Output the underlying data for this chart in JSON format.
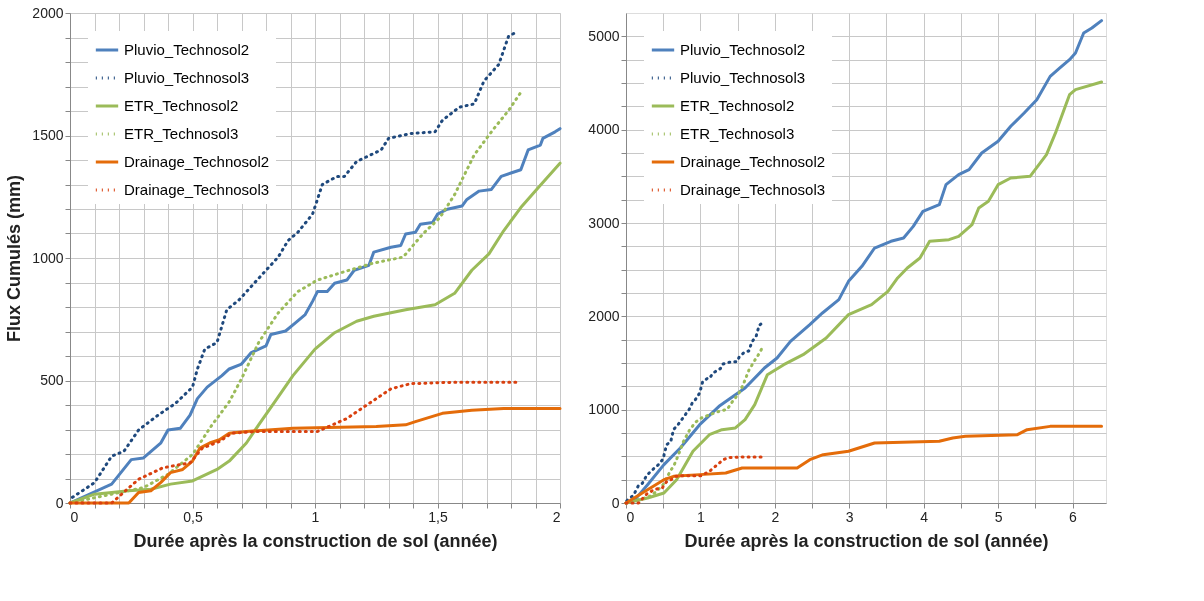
{
  "chart_data": [
    {
      "type": "line",
      "xlabel": "Durée après la construction de sol (année)",
      "ylabel": "Flux Cumulés (mm)",
      "xlim": [
        0,
        2
      ],
      "ylim": [
        0,
        2000
      ],
      "xticks": [
        0,
        {
          "value": 0.1,
          "label": null
        },
        {
          "value": 0.2,
          "label": null
        },
        {
          "value": 0.3,
          "label": null
        },
        {
          "value": 0.4,
          "label": null
        },
        {
          "value": 0.5,
          "label": "0,5"
        },
        {
          "value": 0.6,
          "label": null
        },
        {
          "value": 0.7,
          "label": null
        },
        {
          "value": 0.8,
          "label": null
        },
        {
          "value": 0.9,
          "label": null
        },
        1,
        {
          "value": 1.1,
          "label": null
        },
        {
          "value": 1.2,
          "label": null
        },
        {
          "value": 1.3,
          "label": null
        },
        {
          "value": 1.4,
          "label": null
        },
        {
          "value": 1.5,
          "label": "1,5"
        },
        {
          "value": 1.6,
          "label": null
        },
        {
          "value": 1.7,
          "label": null
        },
        {
          "value": 1.8,
          "label": null
        },
        {
          "value": 1.9,
          "label": null
        },
        2
      ],
      "yticks": [
        0,
        {
          "value": 100,
          "label": null
        },
        {
          "value": 200,
          "label": null
        },
        {
          "value": 300,
          "label": null
        },
        {
          "value": 400,
          "label": null
        },
        500,
        {
          "value": 600,
          "label": null
        },
        {
          "value": 700,
          "label": null
        },
        {
          "value": 800,
          "label": null
        },
        {
          "value": 900,
          "label": null
        },
        1000,
        {
          "value": 1100,
          "label": null
        },
        {
          "value": 1200,
          "label": null
        },
        {
          "value": 1300,
          "label": null
        },
        {
          "value": 1400,
          "label": null
        },
        1500,
        {
          "value": 1600,
          "label": null
        },
        {
          "value": 1700,
          "label": null
        },
        {
          "value": 1800,
          "label": null
        },
        {
          "value": 1900,
          "label": null
        },
        2000
      ],
      "grid": true,
      "legend": "top left",
      "series": [
        {
          "name": "Pluvio_Technosol2",
          "color": "#4f81bd",
          "line_style": "solid",
          "x": [
            0,
            0.17,
            0.25,
            0.3,
            0.37,
            0.4,
            0.45,
            0.49,
            0.52,
            0.56,
            0.62,
            0.65,
            0.7,
            0.74,
            0.8,
            0.82,
            0.88,
            0.92,
            0.96,
            0.99,
            1.01,
            1.05,
            1.08,
            1.13,
            1.16,
            1.22,
            1.24,
            1.31,
            1.35,
            1.37,
            1.41,
            1.43,
            1.48,
            1.5,
            1.54,
            1.6,
            1.62,
            1.67,
            1.72,
            1.76,
            1.8,
            1.84,
            1.87,
            1.92,
            1.93,
            1.98,
            2.0
          ],
          "values": [
            0,
            77,
            177,
            184,
            244,
            298,
            305,
            359,
            426,
            473,
            520,
            547,
            567,
            614,
            641,
            688,
            702,
            735,
            769,
            823,
            863,
            863,
            897,
            910,
            950,
            970,
            1024,
            1044,
            1051,
            1098,
            1105,
            1138,
            1145,
            1179,
            1199,
            1212,
            1239,
            1273,
            1280,
            1333,
            1347,
            1360,
            1441,
            1461,
            1488,
            1515,
            1528
          ]
        },
        {
          "name": "Pluvio_Technosol3",
          "color": "#1f497d",
          "line_style": "dotted",
          "x": [
            0.01,
            0.1,
            0.17,
            0.22,
            0.28,
            0.36,
            0.43,
            0.5,
            0.52,
            0.55,
            0.6,
            0.64,
            0.69,
            0.77,
            0.85,
            0.89,
            0.93,
            0.99,
            1.03,
            1.09,
            1.12,
            1.17,
            1.27,
            1.3,
            1.39,
            1.49,
            1.52,
            1.59,
            1.65,
            1.69,
            1.75,
            1.79,
            1.82
          ],
          "values": [
            23,
            83,
            191,
            211,
            298,
            359,
            406,
            473,
            547,
            628,
            655,
            789,
            829,
            917,
            1004,
            1071,
            1105,
            1179,
            1300,
            1333,
            1333,
            1394,
            1441,
            1488,
            1508,
            1515,
            1562,
            1616,
            1629,
            1723,
            1790,
            1905,
            1921
          ]
        },
        {
          "name": "ETR_Technosol2",
          "color": "#9bbb59",
          "line_style": "solid",
          "x": [
            0,
            0.1,
            0.24,
            0.33,
            0.41,
            0.5,
            0.6,
            0.65,
            0.72,
            0.77,
            0.84,
            0.91,
            1.0,
            1.08,
            1.17,
            1.24,
            1.37,
            1.49,
            1.57,
            1.64,
            1.71,
            1.77,
            1.84,
            1.91,
            2.0
          ],
          "values": [
            0,
            36,
            50,
            56,
            77,
            90,
            137,
            171,
            245,
            319,
            419,
            520,
            628,
            695,
            742,
            762,
            789,
            809,
            856,
            950,
            1017,
            1111,
            1206,
            1286,
            1387
          ]
        },
        {
          "name": "ETR_Technosol3",
          "color": "#9bbb59",
          "line_style": "dotted",
          "x": [
            0,
            0.17,
            0.3,
            0.4,
            0.5,
            0.58,
            0.65,
            0.7,
            0.77,
            0.85,
            0.93,
            1.01,
            1.12,
            1.23,
            1.36,
            1.44,
            1.51,
            1.57,
            1.65,
            1.73,
            1.79,
            1.84
          ],
          "values": [
            0,
            36,
            63,
            117,
            198,
            319,
            413,
            507,
            655,
            776,
            863,
            910,
            944,
            977,
            1004,
            1098,
            1165,
            1259,
            1421,
            1528,
            1602,
            1676
          ]
        },
        {
          "name": "Drainage_Technosol2",
          "color": "#e46c0a",
          "line_style": "solid",
          "x": [
            0,
            0.24,
            0.28,
            0.33,
            0.37,
            0.41,
            0.46,
            0.5,
            0.53,
            0.57,
            0.61,
            0.65,
            0.72,
            0.91,
            1.25,
            1.37,
            1.41,
            1.52,
            1.64,
            1.77,
            2.0
          ],
          "values": [
            0,
            0,
            43,
            50,
            83,
            124,
            137,
            171,
            224,
            245,
            258,
            285,
            292,
            305,
            312,
            319,
            332,
            366,
            379,
            386,
            386
          ]
        },
        {
          "name": "Drainage_Technosol3",
          "color": "#d9400f",
          "line_style": "dotted",
          "x": [
            0,
            0.17,
            0.28,
            0.38,
            0.49,
            0.54,
            0.61,
            0.66,
            0.77,
            1.01,
            1.13,
            1.21,
            1.31,
            1.39,
            1.57,
            1.82
          ],
          "values": [
            0,
            0,
            97,
            144,
            164,
            224,
            251,
            285,
            292,
            292,
            345,
            399,
            466,
            487,
            493,
            493
          ]
        }
      ]
    },
    {
      "type": "line",
      "xlabel": "Durée après la construction de sol (année)",
      "xlim": [
        0,
        6.45
      ],
      "ylim": [
        0,
        5250
      ],
      "xticks": [
        0,
        {
          "value": 0.5,
          "label": null
        },
        1,
        {
          "value": 1.5,
          "label": null
        },
        2,
        {
          "value": 2.5,
          "label": null
        },
        3,
        {
          "value": 3.5,
          "label": null
        },
        4,
        {
          "value": 4.5,
          "label": null
        },
        5,
        {
          "value": 5.5,
          "label": null
        },
        6
      ],
      "yticks": [
        0,
        {
          "value": 250,
          "label": null
        },
        {
          "value": 500,
          "label": null
        },
        {
          "value": 750,
          "label": null
        },
        1000,
        {
          "value": 1250,
          "label": null
        },
        {
          "value": 1500,
          "label": null
        },
        {
          "value": 1750,
          "label": null
        },
        2000,
        {
          "value": 2250,
          "label": null
        },
        {
          "value": 2500,
          "label": null
        },
        {
          "value": 2750,
          "label": null
        },
        3000,
        {
          "value": 3250,
          "label": null
        },
        {
          "value": 3500,
          "label": null
        },
        {
          "value": 3750,
          "label": null
        },
        4000,
        {
          "value": 4250,
          "label": null
        },
        {
          "value": 4500,
          "label": null
        },
        {
          "value": 4750,
          "label": null
        },
        5000
      ],
      "grid": true,
      "legend": "top left",
      "series": [
        {
          "name": "Pluvio_Technosol2",
          "color": "#4f81bd",
          "line_style": "solid",
          "x": [
            0,
            0.12,
            0.29,
            0.51,
            0.73,
            0.99,
            1.25,
            1.6,
            1.86,
            2.03,
            2.21,
            2.47,
            2.64,
            2.86,
            2.99,
            3.17,
            3.34,
            3.56,
            3.73,
            3.86,
            3.99,
            4.21,
            4.3,
            4.47,
            4.61,
            4.78,
            5.0,
            5.17,
            5.35,
            5.52,
            5.7,
            5.83,
            5.96,
            6.04,
            6.15,
            6.26,
            6.39
          ],
          "values": [
            0,
            36,
            196,
            411,
            589,
            839,
            1036,
            1232,
            1446,
            1554,
            1732,
            1911,
            2036,
            2179,
            2375,
            2536,
            2732,
            2804,
            2839,
            2964,
            3125,
            3196,
            3411,
            3518,
            3571,
            3750,
            3875,
            4036,
            4179,
            4321,
            4571,
            4661,
            4750,
            4821,
            5036,
            5089,
            5168
          ]
        },
        {
          "name": "Pluvio_Technosol3",
          "color": "#1f497d",
          "line_style": "dotted",
          "x": [
            0.01,
            0.1,
            0.17,
            0.22,
            0.28,
            0.36,
            0.43,
            0.5,
            0.52,
            0.55,
            0.6,
            0.64,
            0.69,
            0.77,
            0.85,
            0.89,
            0.93,
            0.99,
            1.03,
            1.09,
            1.12,
            1.17,
            1.27,
            1.3,
            1.39,
            1.49,
            1.52,
            1.59,
            1.65,
            1.69,
            1.75,
            1.79,
            1.82
          ],
          "values": [
            23,
            83,
            191,
            211,
            298,
            359,
            406,
            473,
            547,
            628,
            655,
            789,
            829,
            917,
            1004,
            1071,
            1105,
            1179,
            1300,
            1333,
            1333,
            1394,
            1441,
            1488,
            1508,
            1515,
            1562,
            1616,
            1629,
            1723,
            1790,
            1905,
            1921
          ]
        },
        {
          "name": "ETR_Technosol2",
          "color": "#9bbb59",
          "line_style": "solid",
          "x": [
            0,
            0.29,
            0.51,
            0.68,
            0.9,
            1.12,
            1.29,
            1.47,
            1.6,
            1.73,
            1.9,
            2.12,
            2.38,
            2.69,
            2.99,
            3.3,
            3.52,
            3.65,
            3.78,
            3.95,
            4.08,
            4.34,
            4.47,
            4.65,
            4.74,
            4.87,
            5.0,
            5.17,
            5.43,
            5.65,
            5.78,
            5.96,
            6.04,
            6.39
          ],
          "values": [
            0,
            54,
            107,
            250,
            554,
            732,
            786,
            804,
            893,
            1054,
            1375,
            1482,
            1589,
            1768,
            2018,
            2125,
            2268,
            2411,
            2518,
            2625,
            2804,
            2821,
            2857,
            2982,
            3161,
            3232,
            3411,
            3482,
            3500,
            3732,
            3982,
            4375,
            4429,
            4511
          ]
        },
        {
          "name": "ETR_Technosol3",
          "color": "#9bbb59",
          "line_style": "dotted",
          "x": [
            0,
            0.17,
            0.3,
            0.4,
            0.5,
            0.58,
            0.65,
            0.7,
            0.77,
            0.85,
            0.93,
            1.01,
            1.12,
            1.23,
            1.36,
            1.44,
            1.51,
            1.57,
            1.65,
            1.73,
            1.79,
            1.84
          ],
          "values": [
            0,
            36,
            63,
            117,
            198,
            319,
            413,
            507,
            655,
            776,
            863,
            910,
            944,
            977,
            1004,
            1098,
            1165,
            1259,
            1421,
            1528,
            1602,
            1676
          ]
        },
        {
          "name": "Drainage_Technosol2",
          "color": "#e46c0a",
          "line_style": "solid",
          "x": [
            0,
            0.29,
            0.51,
            0.64,
            0.99,
            1.34,
            1.56,
            2.3,
            2.47,
            2.65,
            2.99,
            3.34,
            4.21,
            4.39,
            4.56,
            5.26,
            5.39,
            5.7,
            6.39
          ],
          "values": [
            0,
            143,
            250,
            286,
            304,
            321,
            375,
            375,
            464,
            518,
            554,
            643,
            661,
            696,
            714,
            732,
            786,
            821,
            821
          ]
        },
        {
          "name": "Drainage_Technosol3",
          "color": "#d9400f",
          "line_style": "dotted",
          "x": [
            0,
            0.17,
            0.28,
            0.38,
            0.49,
            0.54,
            0.61,
            0.66,
            0.77,
            1.01,
            1.13,
            1.21,
            1.31,
            1.39,
            1.57,
            1.82
          ],
          "values": [
            0,
            0,
            97,
            144,
            164,
            224,
            251,
            285,
            292,
            292,
            345,
            399,
            466,
            487,
            493,
            493
          ]
        }
      ]
    }
  ]
}
